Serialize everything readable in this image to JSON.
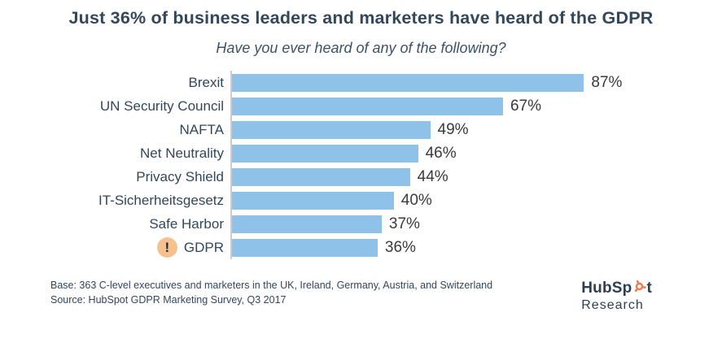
{
  "chart_data": {
    "type": "bar",
    "orientation": "horizontal",
    "title": "Just 36% of business leaders and marketers have heard of the GDPR",
    "subtitle": "Have you ever heard of any of the following?",
    "categories": [
      "Brexit",
      "UN Security Council",
      "NAFTA",
      "Net Neutrality",
      "Privacy Shield",
      "IT-Sicherheitsgesetz",
      "Safe Harbor",
      "GDPR"
    ],
    "values": [
      87,
      67,
      49,
      46,
      44,
      40,
      37,
      36
    ],
    "value_labels": [
      "87%",
      "67%",
      "49%",
      "46%",
      "44%",
      "40%",
      "37%",
      "36%"
    ],
    "xlim": [
      0,
      100
    ],
    "grid": false,
    "legend": "none",
    "bar_color": "#8fc2e9",
    "axis_line_color": "#c9cdd1",
    "highlight": {
      "category": "GDPR",
      "icon": "exclamation-icon",
      "icon_glyph": "!",
      "icon_bg_color": "#f5c18e",
      "icon_glyph_color": "#26272a"
    }
  },
  "footer": {
    "base_note": "Base: 363 C-level executives and marketers in the UK, Ireland, Germany, Austria, and Switzerland",
    "source_note": "Source: HubSpot GDPR Marketing Survey, Q3 2017"
  },
  "logo": {
    "brand_prefix": "HubSp",
    "brand_suffix": "t",
    "subtext": "Research",
    "brand_color": "#2e3f50",
    "accent_color": "#f4764f"
  },
  "colors": {
    "title_text": "#33475b",
    "subtitle_text": "#3e5266",
    "category_text": "#33475b",
    "value_text": "#3a3a3a",
    "background": "#ffffff"
  }
}
